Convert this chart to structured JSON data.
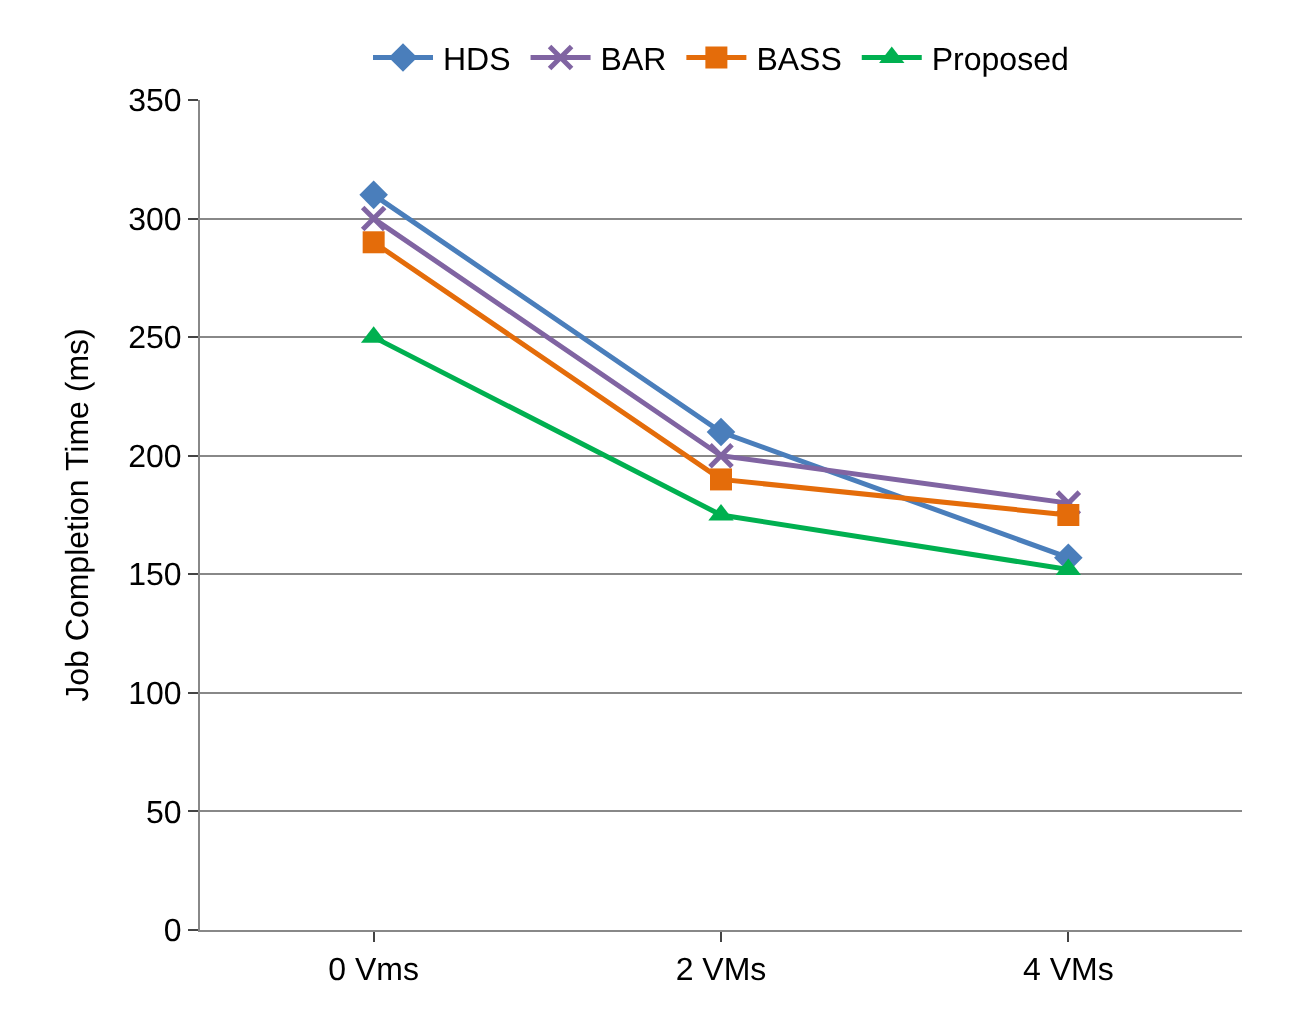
{
  "chart_data": {
    "type": "line",
    "ylabel": "Job Completion Time (ms)",
    "categories": [
      "0 Vms",
      "2 VMs",
      "4 VMs"
    ],
    "ylim": [
      0,
      350
    ],
    "yticks": [
      0,
      50,
      100,
      150,
      200,
      250,
      300,
      350
    ],
    "grid": "y",
    "legend": "top",
    "series": [
      {
        "name": "HDS",
        "color": "#4a7ebb",
        "marker": "diamond",
        "values": [
          310,
          210,
          157
        ]
      },
      {
        "name": "BAR",
        "color": "#8064a2",
        "marker": "cross",
        "values": [
          300,
          200,
          180
        ]
      },
      {
        "name": "BASS",
        "color": "#e46c0a",
        "marker": "square",
        "values": [
          290,
          190,
          175
        ]
      },
      {
        "name": "Proposed",
        "color": "#00b050",
        "marker": "triangle",
        "values": [
          250,
          175,
          152
        ]
      }
    ]
  }
}
